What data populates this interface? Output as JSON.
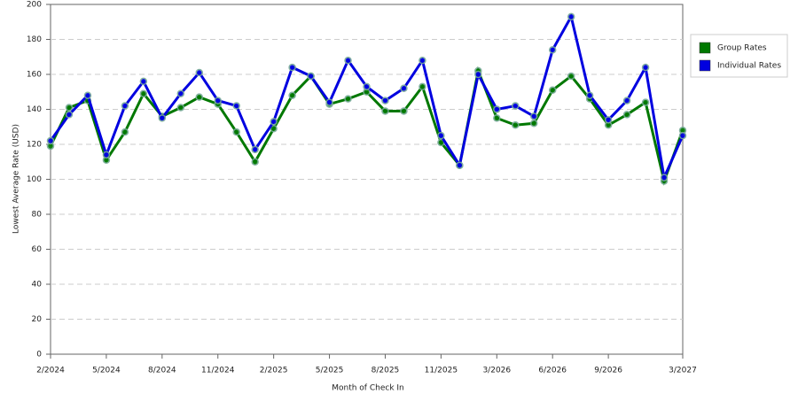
{
  "chart_data": {
    "type": "line",
    "x_label": "Month of Check In",
    "y_label": "Lowest Average Rate (USD)",
    "categories": [
      "2/2024",
      null,
      null,
      "5/2024",
      null,
      null,
      "8/2024",
      null,
      null,
      "11/2024",
      null,
      null,
      "2/2025",
      null,
      null,
      "5/2025",
      null,
      null,
      "8/2025",
      null,
      null,
      "11/2025",
      null,
      null,
      "3/2026",
      null,
      null,
      "6/2026",
      null,
      null,
      "9/2026",
      null,
      null,
      null,
      "3/2027"
    ],
    "series": [
      {
        "name": "Group Rates",
        "color": "#007800",
        "values": [
          119,
          141,
          145,
          111,
          127,
          149,
          136,
          141,
          147,
          143,
          127,
          110,
          129,
          148,
          159,
          143,
          146,
          150,
          139,
          139,
          153,
          121,
          108,
          162,
          135,
          131,
          132,
          151,
          159,
          146,
          131,
          137,
          144,
          99,
          128
        ]
      },
      {
        "name": "Individual Rates",
        "color": "#0000e0",
        "values": [
          122,
          137,
          148,
          114,
          142,
          156,
          135,
          149,
          161,
          145,
          142,
          117,
          133,
          164,
          159,
          144,
          168,
          153,
          145,
          152,
          168,
          125,
          108,
          160,
          140,
          142,
          136,
          174,
          193,
          148,
          134,
          145,
          164,
          101,
          125
        ]
      }
    ],
    "ylim": [
      0,
      200
    ],
    "yticks": [
      0,
      20,
      40,
      60,
      80,
      100,
      120,
      140,
      160,
      180,
      200
    ],
    "grid": true,
    "legend": "right"
  }
}
